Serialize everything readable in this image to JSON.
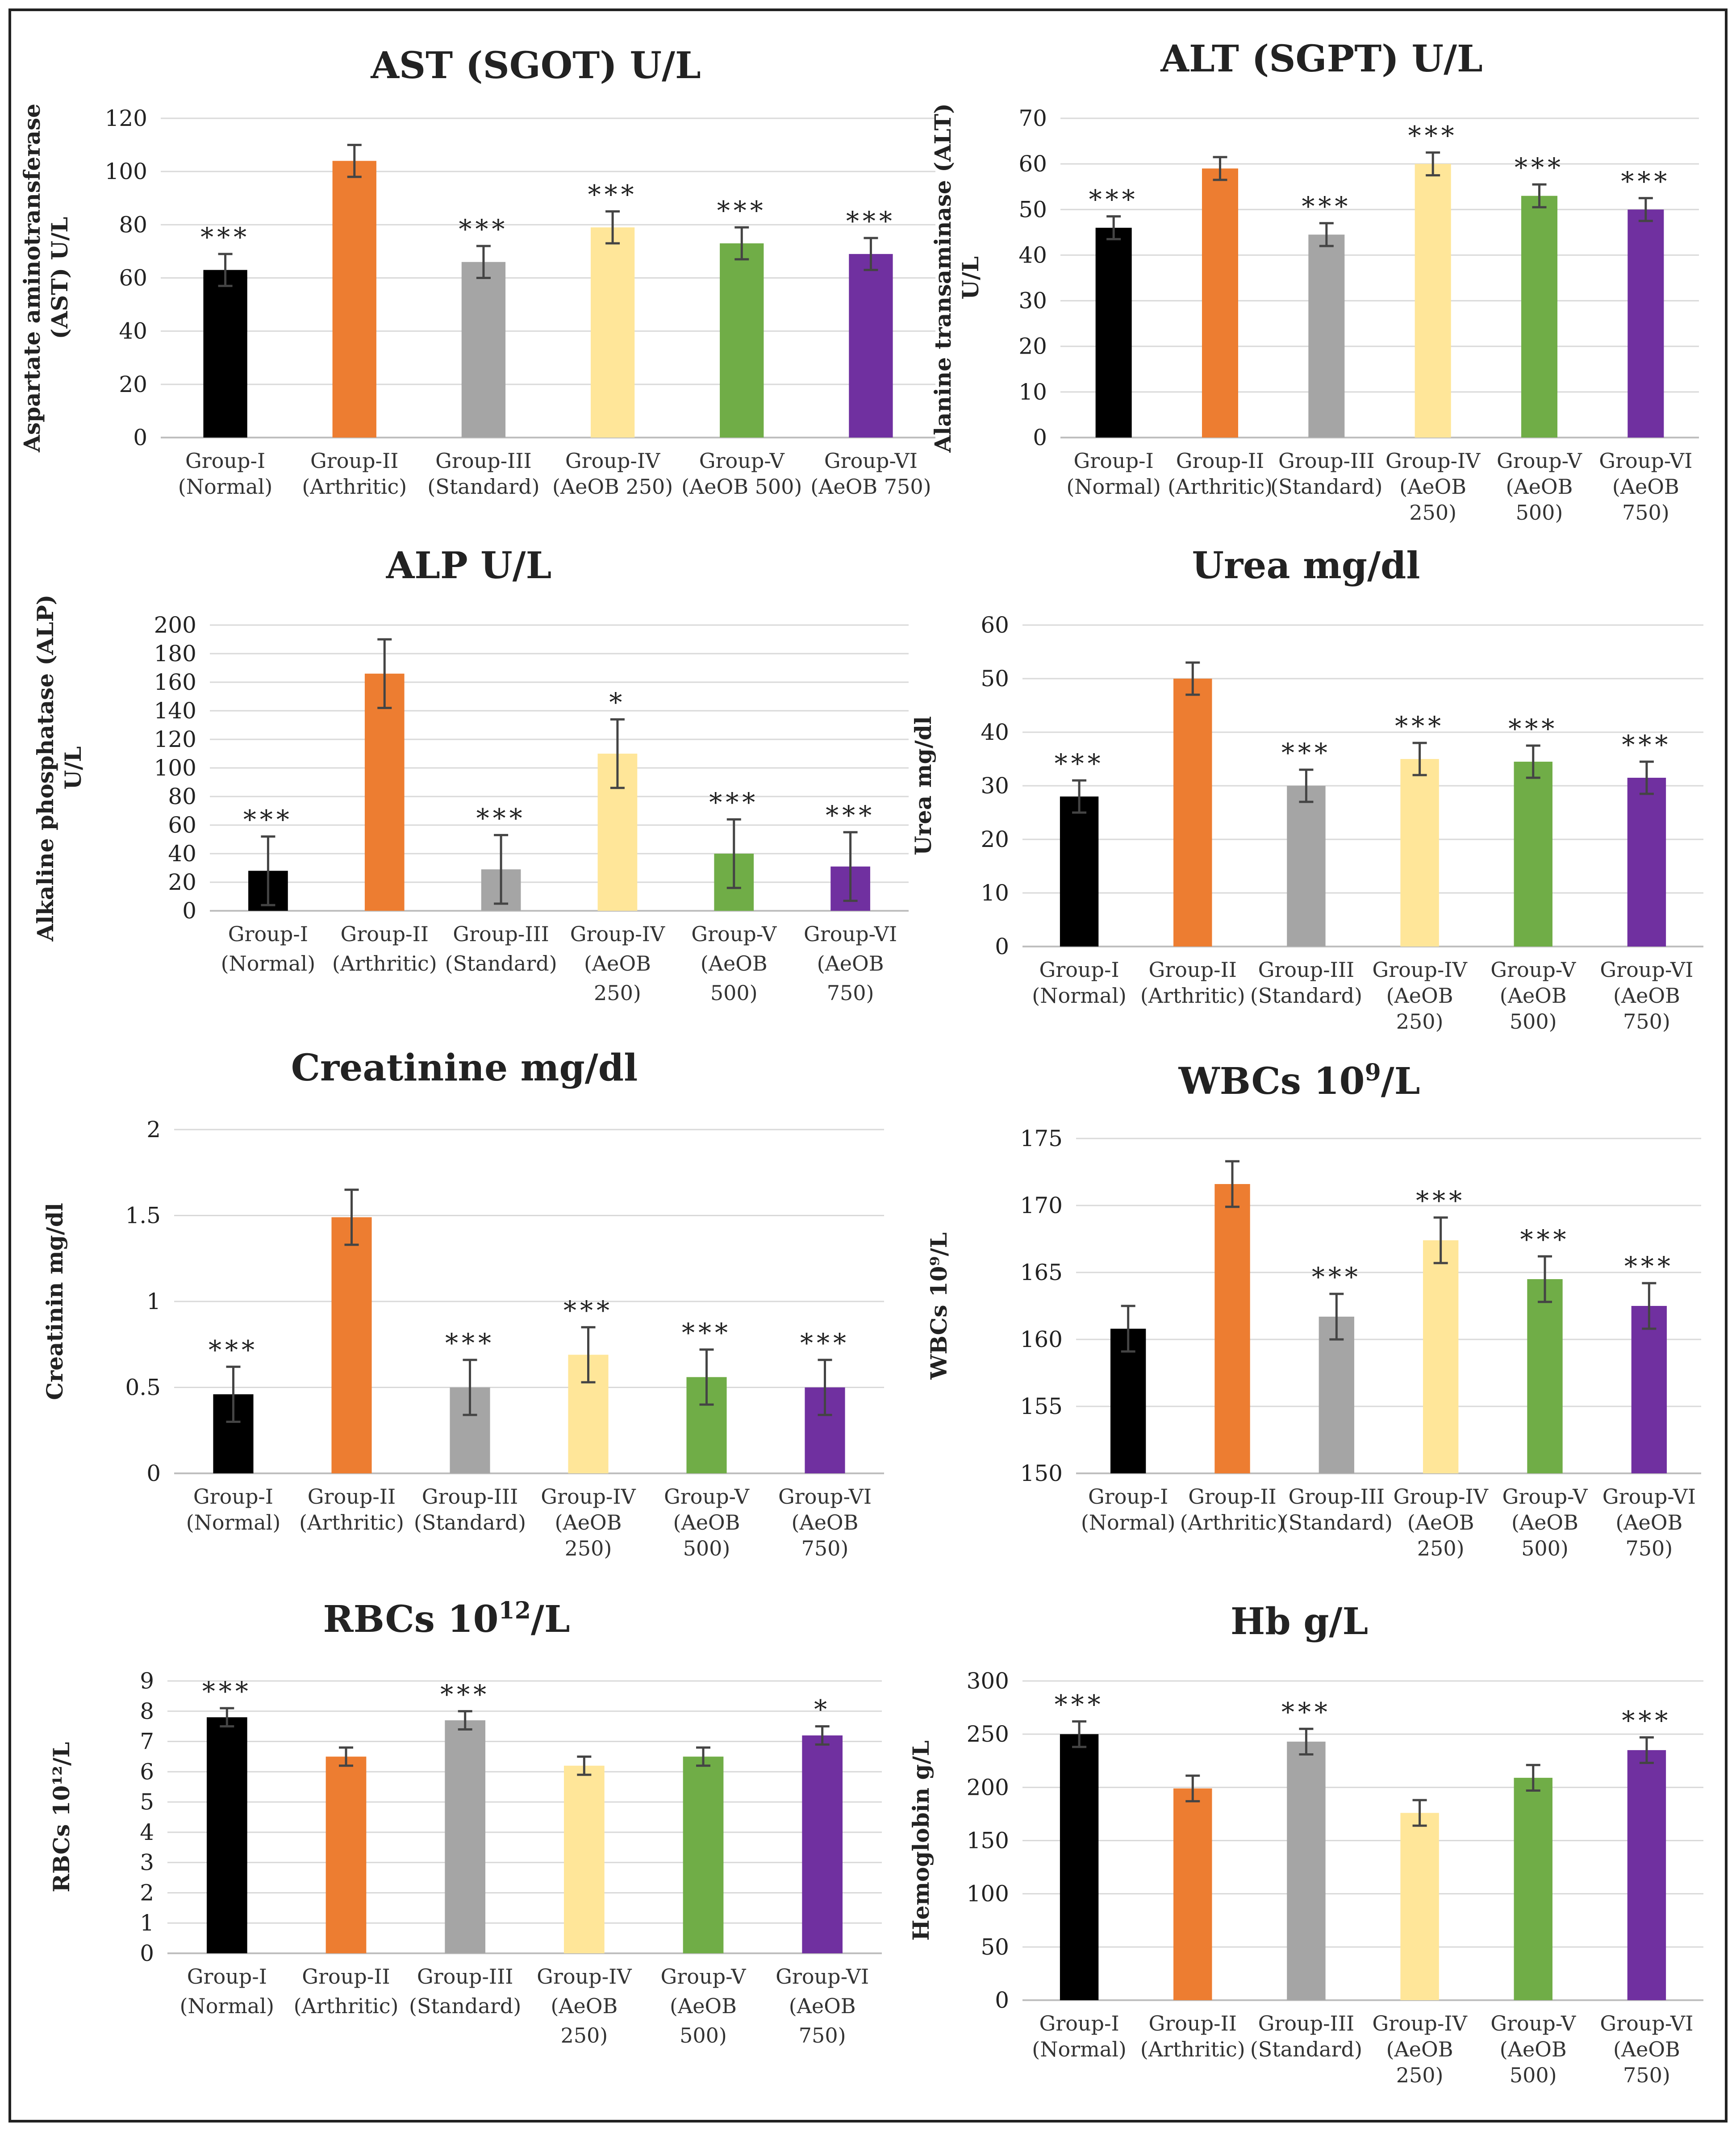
{
  "colors": [
    "#000000",
    "#ed7d31",
    "#a5a5a5",
    "#ffe699",
    "#70ad47",
    "#7030a0"
  ],
  "chart_data": [
    {
      "type": "bar",
      "title": "AST (SGOT) U/L",
      "ylabel": [
        "Aspartate aminotransferase",
        "(AST) U/L"
      ],
      "ylim": [
        0,
        120
      ],
      "yticks": [
        "0",
        "20",
        "40",
        "60",
        "80",
        "100",
        "120"
      ],
      "categories": [
        [
          "Group-I",
          "(Normal)"
        ],
        [
          "Group-II",
          "(Arthritic)"
        ],
        [
          "Group-III",
          "(Standard)"
        ],
        [
          "Group-IV",
          "(AeOB 250)"
        ],
        [
          "Group-V",
          "(AeOB 500)"
        ],
        [
          "Group-VI",
          "(AeOB 750)"
        ]
      ],
      "values": [
        63,
        104,
        66,
        79,
        73,
        69
      ],
      "errors": [
        6,
        6,
        6,
        6,
        6,
        6
      ],
      "significance": [
        "***",
        "",
        "***",
        "***",
        "***",
        "***"
      ]
    },
    {
      "type": "bar",
      "title": "ALT (SGPT) U/L",
      "ylabel": [
        "Alanine transaminase (ALT)",
        "U/L"
      ],
      "ylim": [
        0,
        70
      ],
      "yticks": [
        "0",
        "10",
        "20",
        "30",
        "40",
        "50",
        "60",
        "70"
      ],
      "categories": [
        [
          "Group-I",
          "(Normal)"
        ],
        [
          "Group-II",
          "(Arthritic)"
        ],
        [
          "Group-III",
          "(Standard)"
        ],
        [
          "Group-IV",
          "(AeOB",
          "250)"
        ],
        [
          "Group-V",
          "(AeOB",
          "500)"
        ],
        [
          "Group-VI",
          "(AeOB",
          "750)"
        ]
      ],
      "values": [
        46,
        59,
        44.5,
        60,
        53,
        50
      ],
      "errors": [
        2.5,
        2.5,
        2.5,
        2.5,
        2.5,
        2.5
      ],
      "significance": [
        "***",
        "",
        "***",
        "***",
        "***",
        "***"
      ]
    },
    {
      "type": "bar",
      "title": "ALP U/L",
      "ylabel": [
        "Alkaline phosphatase (ALP)",
        "U/L"
      ],
      "ylim": [
        0,
        200
      ],
      "yticks": [
        "0",
        "20",
        "40",
        "60",
        "80",
        "100",
        "120",
        "140",
        "160",
        "180",
        "200"
      ],
      "categories": [
        [
          "Group-I",
          "(Normal)"
        ],
        [
          "Group-II",
          "(Arthritic)"
        ],
        [
          "Group-III",
          "(Standard)"
        ],
        [
          "Group-IV",
          "(AeOB",
          "250)"
        ],
        [
          "Group-V",
          "(AeOB",
          "500)"
        ],
        [
          "Group-VI",
          "(AeOB",
          "750)"
        ]
      ],
      "values": [
        28,
        166,
        29,
        110,
        40,
        31
      ],
      "errors": [
        24,
        24,
        24,
        24,
        24,
        24
      ],
      "significance": [
        "***",
        "",
        "***",
        "*",
        "***",
        "***"
      ]
    },
    {
      "type": "bar",
      "title": "Urea mg/dl",
      "ylabel": [
        "Urea mg/dl"
      ],
      "ylim": [
        0,
        60
      ],
      "yticks": [
        "0",
        "10",
        "20",
        "30",
        "40",
        "50",
        "60"
      ],
      "categories": [
        [
          "Group-I",
          "(Normal)"
        ],
        [
          "Group-II",
          "(Arthritic)"
        ],
        [
          "Group-III",
          "(Standard)"
        ],
        [
          "Group-IV",
          "(AeOB",
          "250)"
        ],
        [
          "Group-V",
          "(AeOB",
          "500)"
        ],
        [
          "Group-VI",
          "(AeOB",
          "750)"
        ]
      ],
      "values": [
        28,
        50,
        30,
        35,
        34.5,
        31.5
      ],
      "errors": [
        3,
        3,
        3,
        3,
        3,
        3
      ],
      "significance": [
        "***",
        "",
        "***",
        "***",
        "***",
        "***"
      ]
    },
    {
      "type": "bar",
      "title": "Creatinine mg/dl",
      "ylabel": [
        "Creatinin mg/dl"
      ],
      "ylim": [
        0,
        2
      ],
      "yticks": [
        "0",
        "0.5",
        "1",
        "1.5",
        "2"
      ],
      "categories": [
        [
          "Group-I",
          "(Normal)"
        ],
        [
          "Group-II",
          "(Arthritic)"
        ],
        [
          "Group-III",
          "(Standard)"
        ],
        [
          "Group-IV",
          "(AeOB",
          "250)"
        ],
        [
          "Group-V",
          "(AeOB",
          "500)"
        ],
        [
          "Group-VI",
          "(AeOB",
          "750)"
        ]
      ],
      "values": [
        0.46,
        1.49,
        0.5,
        0.69,
        0.56,
        0.5
      ],
      "errors": [
        0.16,
        0.16,
        0.16,
        0.16,
        0.16,
        0.16
      ],
      "significance": [
        "***",
        "",
        "***",
        "***",
        "***",
        "***"
      ]
    },
    {
      "type": "bar",
      "title": "WBCs 10",
      "title_sup": "9",
      "title_rest": "/L",
      "ylabel": [
        "WBCs 10⁹/L"
      ],
      "ylim": [
        150,
        175
      ],
      "yticks": [
        "150",
        "155",
        "160",
        "165",
        "170",
        "175"
      ],
      "categories": [
        [
          "Group-I",
          "(Normal)"
        ],
        [
          "Group-II",
          "(Arthritic)"
        ],
        [
          "Group-III",
          "(Standard)"
        ],
        [
          "Group-IV",
          "(AeOB",
          "250)"
        ],
        [
          "Group-V",
          "(AeOB",
          "500)"
        ],
        [
          "Group-VI",
          "(AeOB",
          "750)"
        ]
      ],
      "values": [
        160.8,
        171.6,
        161.7,
        167.4,
        164.5,
        162.5
      ],
      "errors": [
        1.7,
        1.7,
        1.7,
        1.7,
        1.7,
        1.7
      ],
      "significance": [
        "",
        "",
        "***",
        "***",
        "***",
        "***"
      ]
    },
    {
      "type": "bar",
      "title": "RBCs 10",
      "title_sup": "12",
      "title_rest": "/L",
      "ylabel": [
        "RBCs 10¹²/L"
      ],
      "ylim": [
        0,
        9
      ],
      "yticks": [
        "0",
        "1",
        "2",
        "3",
        "4",
        "5",
        "6",
        "7",
        "8",
        "9"
      ],
      "categories": [
        [
          "Group-I",
          "(Normal)"
        ],
        [
          "Group-II",
          "(Arthritic)"
        ],
        [
          "Group-III",
          "(Standard)"
        ],
        [
          "Group-IV",
          "(AeOB",
          "250)"
        ],
        [
          "Group-V",
          "(AeOB",
          "500)"
        ],
        [
          "Group-VI",
          "(AeOB",
          "750)"
        ]
      ],
      "values": [
        7.8,
        6.5,
        7.7,
        6.2,
        6.5,
        7.2
      ],
      "errors": [
        0.3,
        0.3,
        0.3,
        0.3,
        0.3,
        0.3
      ],
      "significance": [
        "***",
        "",
        "***",
        "",
        "",
        "*"
      ]
    },
    {
      "type": "bar",
      "title": "Hb g/L",
      "ylabel": [
        "Hemoglobin g/L"
      ],
      "ylim": [
        0,
        300
      ],
      "yticks": [
        "0",
        "50",
        "100",
        "150",
        "200",
        "250",
        "300"
      ],
      "categories": [
        [
          "Group-I",
          "(Normal)"
        ],
        [
          "Group-II",
          "(Arthritic)"
        ],
        [
          "Group-III",
          "(Standard)"
        ],
        [
          "Group-IV",
          "(AeOB",
          "250)"
        ],
        [
          "Group-V",
          "(AeOB",
          "500)"
        ],
        [
          "Group-VI",
          "(AeOB",
          "750)"
        ]
      ],
      "values": [
        250,
        199,
        243,
        176,
        209,
        235
      ],
      "errors": [
        12,
        12,
        12,
        12,
        12,
        12
      ],
      "significance": [
        "***",
        "",
        "***",
        "",
        "",
        "***"
      ]
    }
  ]
}
